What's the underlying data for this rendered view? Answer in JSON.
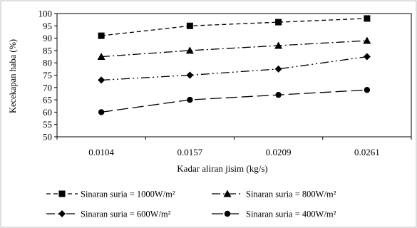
{
  "chart_data": {
    "type": "line",
    "x": [
      "0.0104",
      "0.0157",
      "0.0209",
      "0.0261"
    ],
    "xlabel": "Kadar aliran jisim (kg/s)",
    "ylabel": "Kecekapan haba (%)",
    "ylim": [
      50,
      100
    ],
    "yticks": [
      50,
      55,
      60,
      65,
      70,
      75,
      80,
      85,
      90,
      95,
      100
    ],
    "grid": false,
    "legend_position": "bottom",
    "series": [
      {
        "name": "Sinaran suria = 1000W/m²",
        "values": [
          91,
          95,
          96.5,
          98
        ],
        "marker": "square",
        "dash": "short-dash"
      },
      {
        "name": "Sinaran suria = 800W/m²",
        "values": [
          82.5,
          85,
          87,
          89
        ],
        "marker": "triangle",
        "dash": "dash-dot"
      },
      {
        "name": "Sinaran suria = 600W/m²",
        "values": [
          73,
          75,
          77.5,
          82.5
        ],
        "marker": "diamond",
        "dash": "dash-dot-dot"
      },
      {
        "name": "Sinaran suria = 400W/m²",
        "values": [
          60,
          65,
          67,
          69
        ],
        "marker": "circle",
        "dash": "long-dash"
      }
    ]
  }
}
